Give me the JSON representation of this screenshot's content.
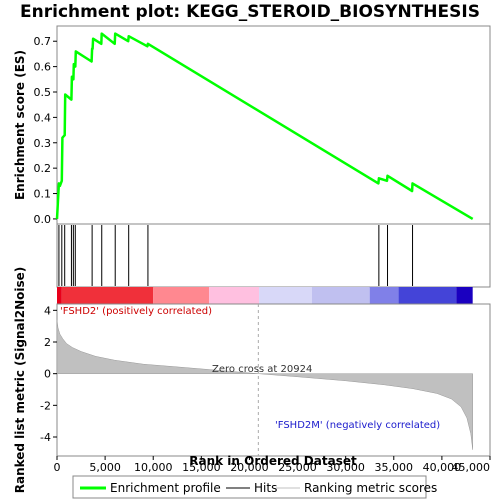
{
  "chart_data": {
    "type": "line",
    "title": "Enrichment plot: KEGG_STEROID_BIOSYNTHESIS",
    "top_panel": {
      "ylabel": "Enrichment score (ES)",
      "ylim": [
        -0.02,
        0.76
      ],
      "yticks": [
        0.0,
        0.1,
        0.2,
        0.3,
        0.4,
        0.5,
        0.6,
        0.7
      ],
      "ytick_labels": [
        "0.0",
        "0.1",
        "0.2",
        "0.3",
        "0.4",
        "0.5",
        "0.6",
        "0.7"
      ],
      "series": [
        {
          "name": "Enrichment profile",
          "color": "#00ff00",
          "x": [
            0,
            200,
            300,
            500,
            560,
            800,
            850,
            1500,
            1550,
            1700,
            1750,
            1900,
            1950,
            3600,
            3650,
            3700,
            3750,
            4600,
            4650,
            6000,
            6050,
            7400,
            7450,
            9400,
            9450,
            33400,
            33450,
            34300,
            34350,
            36900,
            36950,
            43200
          ],
          "y": [
            0.0,
            0.14,
            0.13,
            0.15,
            0.32,
            0.33,
            0.49,
            0.47,
            0.56,
            0.55,
            0.61,
            0.6,
            0.66,
            0.62,
            0.67,
            0.67,
            0.71,
            0.69,
            0.73,
            0.69,
            0.73,
            0.7,
            0.72,
            0.68,
            0.69,
            0.14,
            0.16,
            0.15,
            0.17,
            0.11,
            0.14,
            0.0
          ]
        }
      ]
    },
    "hits_panel": {
      "hit_positions": [
        200,
        500,
        800,
        1500,
        1700,
        1900,
        3650,
        4650,
        6050,
        7450,
        9450,
        33450,
        34350,
        36950
      ]
    },
    "heatmap_bar": {
      "segments": [
        {
          "end": 500,
          "color": "#e8001a"
        },
        {
          "end": 10000,
          "color": "#f0303a"
        },
        {
          "end": 15800,
          "color": "#ff8890"
        },
        {
          "end": 21000,
          "color": "#ffc0e0"
        },
        {
          "end": 26500,
          "color": "#d8d8f8"
        },
        {
          "end": 32500,
          "color": "#c0c0f0"
        },
        {
          "end": 35500,
          "color": "#8080e8"
        },
        {
          "end": 41500,
          "color": "#4444d8"
        },
        {
          "end": 43200,
          "color": "#1a00c0"
        }
      ]
    },
    "bottom_panel": {
      "ylabel": "Ranked list metric (Signal2Noise)",
      "ylim": [
        -5.2,
        4.4
      ],
      "yticks": [
        -4,
        -2,
        0,
        2,
        4
      ],
      "ytick_labels": [
        "-4",
        "-2",
        "0",
        "2",
        "4"
      ],
      "metric_curve": {
        "x": [
          0,
          100,
          300,
          600,
          1000,
          1600,
          2500,
          4000,
          6000,
          9000,
          12000,
          16000,
          20924,
          25000,
          30000,
          34000,
          37000,
          39500,
          41000,
          42000,
          42600,
          43000,
          43200
        ],
        "y": [
          3.4,
          2.9,
          2.5,
          2.2,
          1.9,
          1.65,
          1.4,
          1.1,
          0.85,
          0.6,
          0.45,
          0.25,
          0.0,
          -0.2,
          -0.45,
          -0.7,
          -0.95,
          -1.25,
          -1.6,
          -2.1,
          -2.8,
          -3.8,
          -4.8
        ]
      },
      "fill_color": "#c0c0c0",
      "zero_cross": 20924,
      "zero_cross_label": "Zero cross at 20924",
      "pos_label": "'FSHD2' (positively correlated)",
      "neg_label": "'FSHD2M' (negatively correlated)"
    },
    "xaxis": {
      "xlabel": "Rank in Ordered Dataset",
      "xlim": [
        0,
        45000
      ],
      "xticks": [
        0,
        5000,
        10000,
        15000,
        20000,
        25000,
        30000,
        35000,
        40000,
        45000
      ],
      "xtick_labels": [
        "0",
        "5,000",
        "10,000",
        "15,000",
        "20,000",
        "25,000",
        "30,000",
        "35,000",
        "40,000",
        "45,000"
      ]
    },
    "legend": {
      "items": [
        {
          "label": "Enrichment profile",
          "color": "#00ff00",
          "style": "thick"
        },
        {
          "label": "Hits",
          "color": "#000000",
          "style": "thin"
        },
        {
          "label": "Ranking metric scores",
          "color": "#c0c0c0",
          "style": "thin"
        }
      ]
    }
  }
}
